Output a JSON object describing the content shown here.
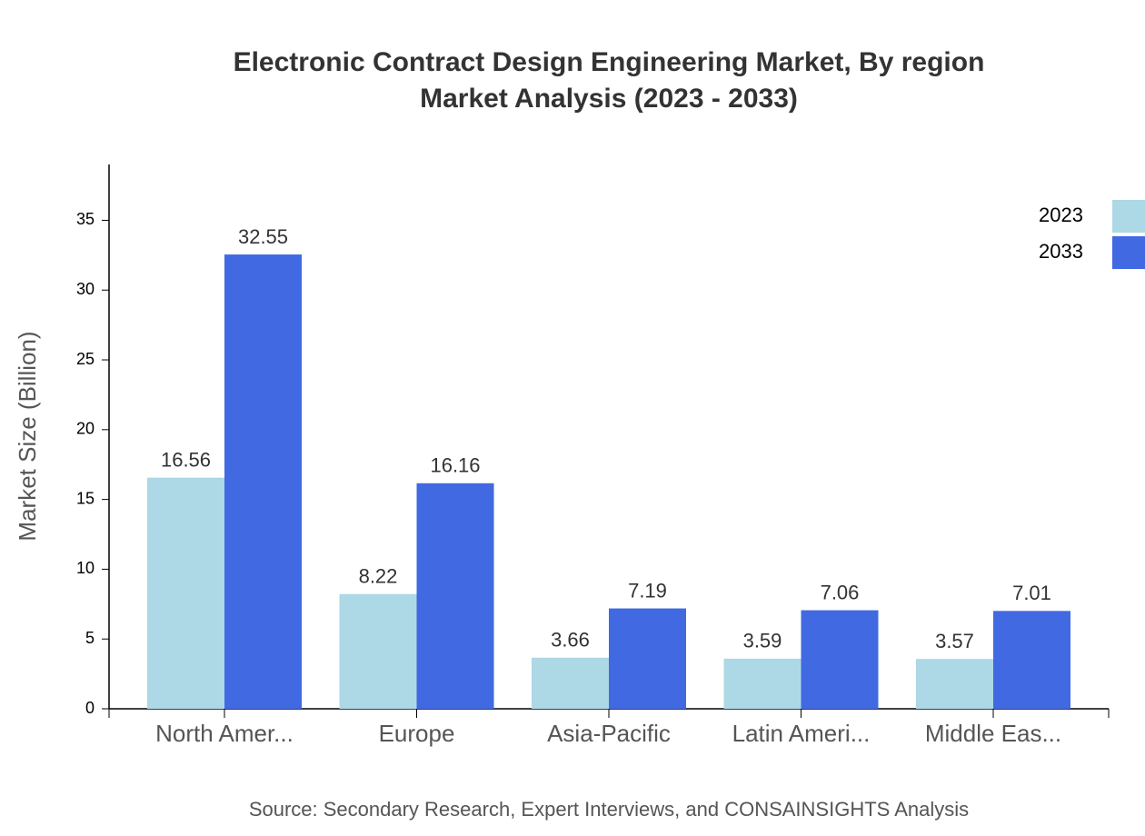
{
  "chart_data": {
    "type": "bar",
    "title": "Electronic Contract Design Engineering Market, By region",
    "subtitle": "Market Analysis (2023 - 2033)",
    "y_label": "Market Size (Billion)",
    "source": "Source: Secondary Research, Expert Interviews, and CONSAINSIGHTS Analysis",
    "categories": [
      "North Amer...",
      "Europe",
      "Asia-Pacific",
      "Latin Ameri...",
      "Middle Eas..."
    ],
    "series": [
      {
        "name": "2023",
        "color": "#add8e6",
        "values": [
          16.56,
          8.22,
          3.66,
          3.59,
          3.57
        ]
      },
      {
        "name": "2033",
        "color": "#4169e1",
        "values": [
          32.55,
          16.16,
          7.19,
          7.06,
          7.01
        ]
      }
    ],
    "ylim": [
      0,
      39
    ],
    "yticks": [
      0,
      5,
      10,
      15,
      20,
      25,
      30,
      35
    ],
    "legend": "top-right"
  }
}
